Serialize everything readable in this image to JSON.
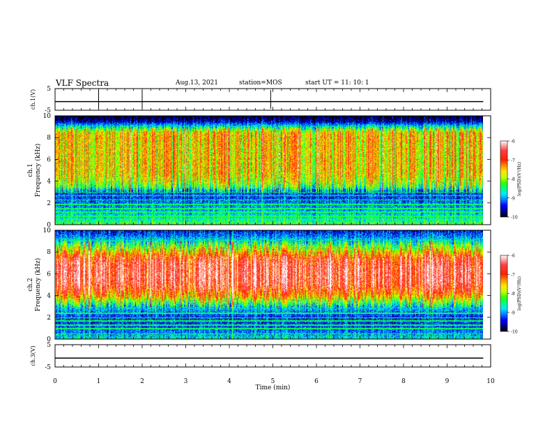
{
  "header": {
    "title": "VLF Spectra",
    "date": "Aug.13, 2021",
    "station": "station=MOS",
    "start_ut": "start  UT =   11: 10: 1"
  },
  "chart_data": [
    {
      "type": "line",
      "panel": "ch1-waveform",
      "ylabel": "ch.1(V)",
      "ylim": [
        -5,
        5
      ],
      "yticks": [
        "5",
        "-5"
      ],
      "x": [
        0,
        9.83
      ],
      "values": [
        -1.0,
        -1.0
      ],
      "spikes_at_min": [
        1.0,
        2.0,
        4.95
      ]
    },
    {
      "type": "heatmap",
      "panel": "ch1-spectrogram",
      "ylabel_line1": "ch.1",
      "ylabel_line2": "Frequency (kHz)",
      "ylim": [
        0,
        10
      ],
      "yticks": [
        "0",
        "2",
        "4",
        "6",
        "8",
        "10"
      ],
      "xlim": [
        0,
        10
      ],
      "data_end_min": 9.83,
      "freq_kHz": [
        0,
        0.5,
        1,
        1.5,
        2,
        2.5,
        3,
        3.5,
        4,
        4.5,
        5,
        5.5,
        6,
        6.5,
        7,
        7.5,
        8,
        8.5,
        9,
        9.5,
        10
      ],
      "logPSD": [
        -8.2,
        -8.6,
        -8.8,
        -9.0,
        -9.1,
        -9.3,
        -9.2,
        -8.3,
        -7.9,
        -7.7,
        -7.6,
        -7.6,
        -7.6,
        -7.6,
        -7.6,
        -7.6,
        -7.5,
        -7.6,
        -8.6,
        -9.6,
        -10.0
      ],
      "lines_kHz": [
        0.5,
        0.8,
        1.2,
        1.5,
        1.9,
        2.3,
        2.7,
        3.0
      ]
    },
    {
      "type": "heatmap",
      "panel": "ch2-spectrogram",
      "ylabel_line1": "ch.2",
      "ylabel_line2": "Frequency (kHz)",
      "ylim": [
        0,
        10
      ],
      "yticks": [
        "0",
        "2",
        "4",
        "6",
        "8",
        "10"
      ],
      "xlim": [
        0,
        10
      ],
      "data_end_min": 9.83,
      "freq_kHz": [
        0,
        0.5,
        1,
        1.5,
        2,
        2.5,
        3,
        3.5,
        4,
        4.5,
        5,
        5.5,
        6,
        6.5,
        7,
        7.5,
        8,
        8.5,
        9,
        9.5,
        10
      ],
      "logPSD": [
        -8.6,
        -9.0,
        -9.2,
        -9.3,
        -9.3,
        -9.1,
        -8.7,
        -8.0,
        -7.3,
        -6.9,
        -6.6,
        -6.5,
        -6.5,
        -6.5,
        -6.6,
        -6.8,
        -7.4,
        -8.0,
        -8.6,
        -9.1,
        -9.4
      ],
      "lines_kHz": [
        0.5,
        1.0,
        1.3,
        1.7,
        2.0,
        2.4
      ]
    },
    {
      "type": "line",
      "panel": "ch3-waveform",
      "ylabel": "ch.3(V)",
      "ylim": [
        -5,
        5
      ],
      "yticks": [
        "5",
        "-5"
      ],
      "x": [
        0,
        9.83
      ],
      "values": [
        -1.0,
        -1.0
      ],
      "spikes_at_min": []
    }
  ],
  "colorbar": {
    "label": "log(PSD)(V²/Hz)",
    "range": [
      -10,
      -6
    ],
    "ticks": [
      "-6",
      "-7",
      "-8",
      "-9",
      "-10"
    ],
    "colors": [
      "#000000",
      "#00008c",
      "#0000ff",
      "#0080ff",
      "#00e6ff",
      "#00ff80",
      "#33ff00",
      "#c8ff00",
      "#ffe600",
      "#ff8c00",
      "#ff2000",
      "#ff4040",
      "#ffffff"
    ],
    "stops": [
      -10.0,
      -9.7,
      -9.4,
      -9.1,
      -8.8,
      -8.5,
      -8.2,
      -7.9,
      -7.6,
      -7.3,
      -7.0,
      -6.5,
      -6.0
    ]
  },
  "x_axis": {
    "label": "Time  (min)",
    "ticks": [
      "0",
      "1",
      "2",
      "3",
      "4",
      "5",
      "6",
      "7",
      "8",
      "9",
      "10"
    ],
    "range": [
      0,
      10
    ]
  }
}
